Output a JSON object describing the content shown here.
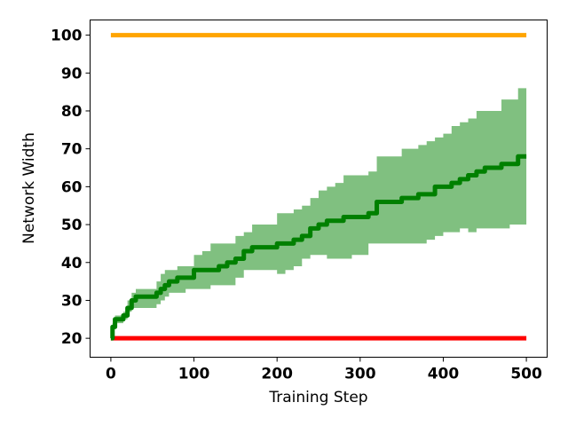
{
  "chart_data": {
    "type": "line",
    "title": "",
    "xlabel": "Training Step",
    "ylabel": "Network Width",
    "xlim": [
      -25,
      525
    ],
    "ylim": [
      15,
      104
    ],
    "xticks": [
      0,
      100,
      200,
      300,
      400,
      500
    ],
    "yticks": [
      20,
      30,
      40,
      50,
      60,
      70,
      80,
      90,
      100
    ],
    "grid": false,
    "legend": "none",
    "series": [
      {
        "color": "#ffa500",
        "x": [
          0,
          500
        ],
        "y": [
          100,
          100
        ]
      },
      {
        "color": "#ff0000",
        "x": [
          0,
          500
        ],
        "y": [
          20,
          20
        ]
      },
      {
        "color": "#008000",
        "band_color": "#80c080",
        "x": [
          0,
          2,
          5,
          10,
          15,
          20,
          25,
          30,
          40,
          50,
          55,
          60,
          65,
          70,
          80,
          90,
          100,
          110,
          120,
          130,
          140,
          150,
          160,
          170,
          180,
          190,
          200,
          210,
          220,
          230,
          240,
          250,
          260,
          270,
          280,
          290,
          300,
          310,
          320,
          330,
          340,
          350,
          360,
          370,
          380,
          390,
          400,
          410,
          420,
          430,
          440,
          450,
          460,
          470,
          480,
          490,
          500
        ],
        "y": [
          20,
          23,
          25,
          25,
          26,
          28,
          30,
          31,
          31,
          31,
          32,
          33,
          34,
          35,
          36,
          36,
          38,
          38,
          38,
          39,
          40,
          41,
          43,
          44,
          44,
          44,
          45,
          45,
          46,
          47,
          49,
          50,
          51,
          51,
          52,
          52,
          52,
          53,
          56,
          56,
          56,
          57,
          57,
          58,
          58,
          60,
          60,
          61,
          62,
          63,
          64,
          65,
          65,
          66,
          66,
          68,
          68
        ],
        "lower": [
          20,
          21,
          23,
          24,
          24,
          25,
          27,
          28,
          28,
          28,
          28,
          29,
          30,
          31,
          32,
          32,
          33,
          33,
          33,
          34,
          34,
          34,
          36,
          38,
          38,
          38,
          38,
          37,
          38,
          39,
          41,
          42,
          42,
          41,
          41,
          41,
          42,
          42,
          45,
          45,
          45,
          45,
          45,
          45,
          45,
          46,
          47,
          48,
          48,
          49,
          48,
          49,
          49,
          49,
          49,
          50,
          50
        ],
        "upper": [
          20,
          24,
          26,
          26,
          27,
          30,
          32,
          33,
          33,
          33,
          35,
          37,
          38,
          38,
          39,
          39,
          42,
          43,
          45,
          45,
          45,
          47,
          48,
          50,
          50,
          50,
          53,
          53,
          54,
          55,
          57,
          59,
          60,
          61,
          63,
          63,
          63,
          64,
          68,
          68,
          68,
          70,
          70,
          71,
          72,
          73,
          74,
          76,
          77,
          78,
          80,
          80,
          80,
          83,
          83,
          86,
          86
        ]
      }
    ]
  }
}
